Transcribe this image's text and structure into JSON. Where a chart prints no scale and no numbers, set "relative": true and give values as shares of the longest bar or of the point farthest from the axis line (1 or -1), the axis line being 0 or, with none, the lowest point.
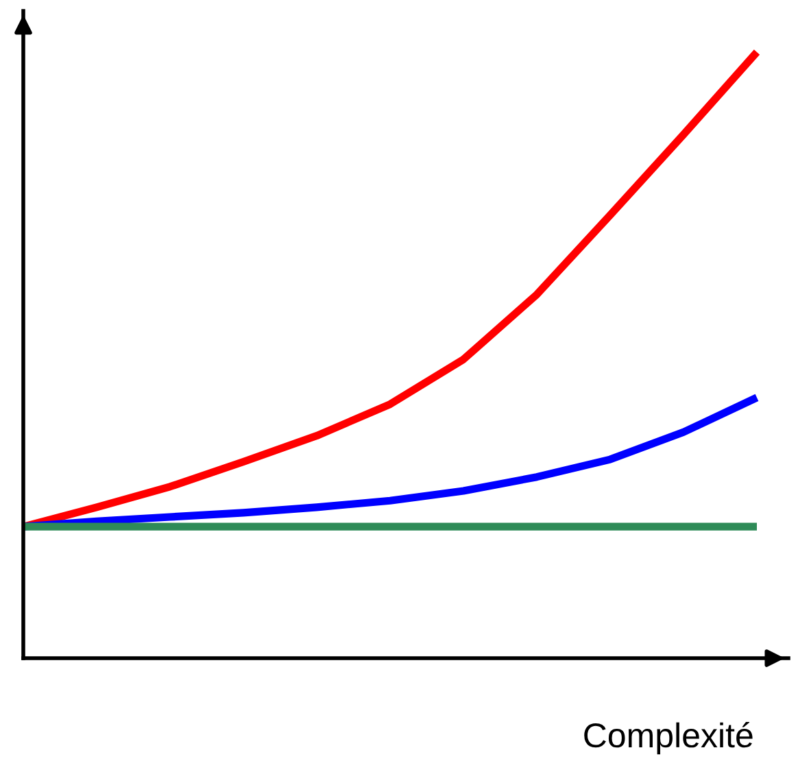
{
  "chart_data": {
    "type": "line",
    "relative": true,
    "xlabel": "Complexité",
    "grid": false,
    "marker": "none",
    "line_style": "solid",
    "categories": [
      null,
      null,
      null,
      null,
      null,
      null,
      null,
      null,
      null,
      null,
      null
    ],
    "series": [
      {
        "color": "#ff0000",
        "values": [
          0.217,
          0.249,
          0.283,
          0.324,
          0.367,
          0.419,
          0.493,
          0.6,
          0.731,
          0.864,
          1
        ]
      },
      {
        "color": "#0000ff",
        "values": [
          0.217,
          0.226,
          0.233,
          0.24,
          0.249,
          0.26,
          0.276,
          0.299,
          0.328,
          0.373,
          0.43
        ]
      },
      {
        "color": "#2e8b57",
        "values": [
          0.217,
          0.217,
          0.217,
          0.217,
          0.217,
          0.217,
          0.217,
          0.217,
          0.217,
          0.217,
          0.217
        ]
      }
    ]
  }
}
